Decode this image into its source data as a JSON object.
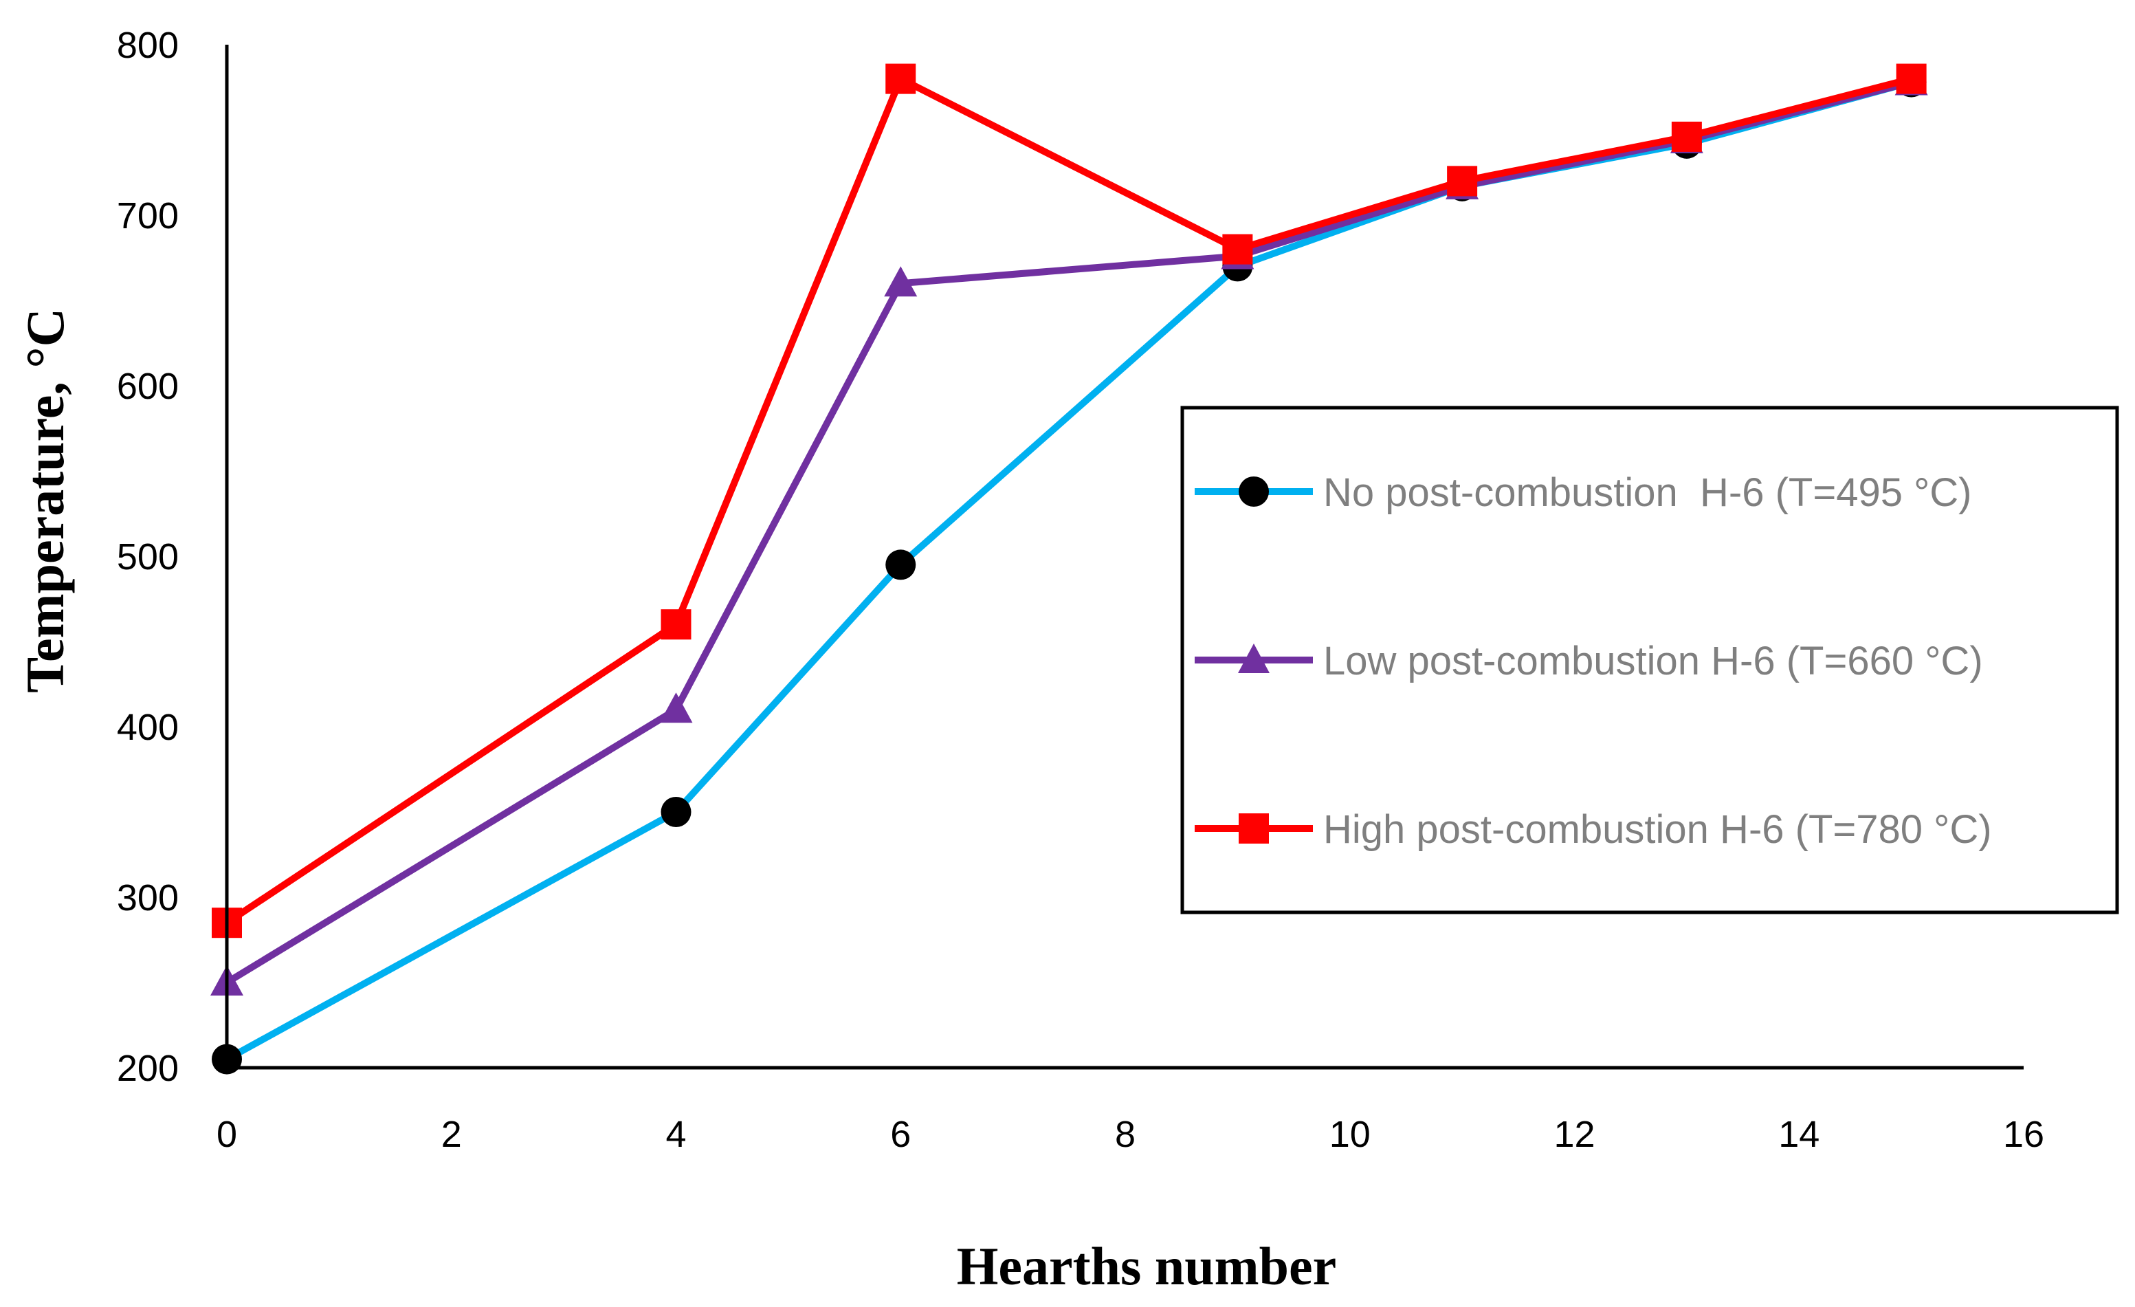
{
  "chart_data": {
    "type": "line",
    "title": "",
    "xlabel": "Hearths number",
    "ylabel": "Temperature, °C",
    "xlim": [
      0,
      16
    ],
    "ylim": [
      200,
      800
    ],
    "xticks": [
      0,
      2,
      4,
      6,
      8,
      10,
      12,
      14,
      16
    ],
    "yticks": [
      200,
      300,
      400,
      500,
      600,
      700,
      800
    ],
    "grid": false,
    "legend_position": "right",
    "series": [
      {
        "name": "No post-combustion  H-6 (T=495 °C)",
        "color": "#00b0f0",
        "marker": "circle",
        "marker_color": "#000000",
        "x": [
          0,
          4,
          6,
          9,
          11,
          13,
          15
        ],
        "y": [
          205,
          350,
          495,
          670,
          717,
          742,
          778
        ]
      },
      {
        "name": "Low post-combustion H-6 (T=660 °C)",
        "color": "#7030a0",
        "marker": "triangle",
        "marker_color": "#7030a0",
        "x": [
          0,
          4,
          6,
          9,
          11,
          13,
          15
        ],
        "y": [
          250,
          410,
          660,
          676,
          717,
          744,
          778
        ]
      },
      {
        "name": "High post-combustion H-6 (T=780 °C)",
        "color": "#ff0000",
        "marker": "square",
        "marker_color": "#ff0000",
        "x": [
          0,
          4,
          6,
          9,
          11,
          13,
          15
        ],
        "y": [
          285,
          460,
          780,
          680,
          720,
          746,
          780
        ]
      }
    ]
  }
}
